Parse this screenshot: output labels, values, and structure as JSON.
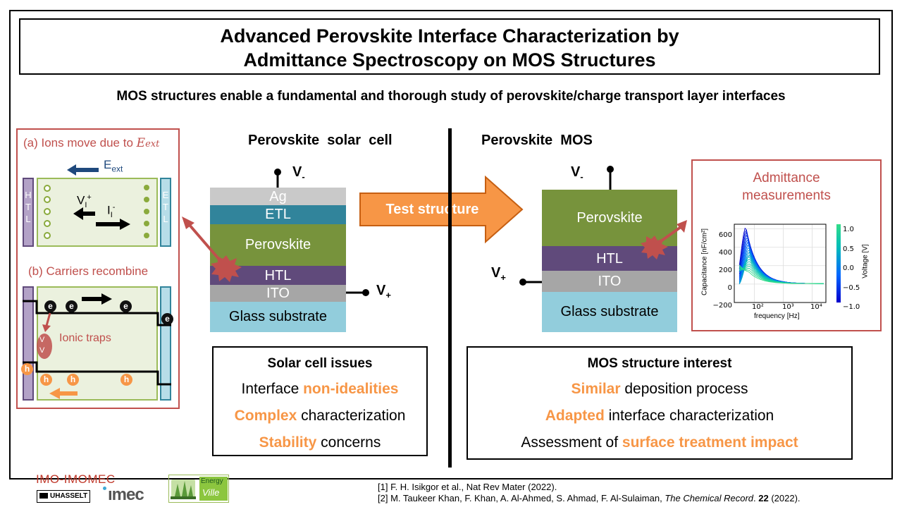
{
  "title": {
    "line1": "Advanced Perovskite Interface Characterization by",
    "line2": "Admittance Spectroscopy on MOS Structures"
  },
  "subtitle": "MOS structures enable a fundamental and thorough study of perovskite/charge transport layer interfaces",
  "left_panel": {
    "part_a": "(a) Ions move due to ",
    "part_a_vec": "E",
    "part_a_sub": "ext",
    "e_field": "E",
    "e_field_sub": "ext",
    "vi": "V",
    "vi_sub": "I",
    "vi_sup": "+",
    "ii": "I",
    "ii_sub": "I",
    "ii_sup": "-",
    "htl_letters": [
      "H",
      "T",
      "L"
    ],
    "etl_letters": [
      "E",
      "T",
      "L"
    ],
    "part_b": "(b) Carriers recombine",
    "ionic_traps": "Ionic traps",
    "trap_v1": "V",
    "trap_v2": "V",
    "electron": "e",
    "hole": "h"
  },
  "solar_cell": {
    "heading": "Perovskite  solar  cell",
    "layers": [
      "Ag",
      "ETL",
      "Perovskite",
      "HTL",
      "ITO",
      "Glass substrate"
    ],
    "v_minus": "V",
    "v_minus_sub": "-",
    "v_plus": "V",
    "v_plus_sub": "+"
  },
  "arrow_label": "Test structure",
  "mos": {
    "heading": "Perovskite  MOS",
    "layers": [
      "Perovskite",
      "HTL",
      "ITO",
      "Glass substrate"
    ],
    "v_minus": "V",
    "v_minus_sub": "-",
    "v_plus": "V",
    "v_plus_sub": "+"
  },
  "admittance": {
    "title_line1": "Admittance",
    "title_line2": "measurements",
    "ylabel": "Capacitance [nF/cm²]",
    "xlabel": "frequency [Hz]",
    "yticks": [
      "600",
      "400",
      "200",
      "0",
      "−200"
    ],
    "xticks": [
      "10²",
      "10³",
      "10⁴"
    ],
    "cbar_label": "Voltage [V]",
    "cbar_ticks": [
      "1.0",
      "0.5",
      "0.0",
      "−0.5",
      "−1.0"
    ]
  },
  "chart_data": {
    "type": "line",
    "title": "",
    "xlabel": "frequency [Hz]",
    "ylabel": "Capacitance [nF/cm²]",
    "xscale": "log",
    "xlim": [
      20,
      30000
    ],
    "ylim": [
      -200,
      650
    ],
    "colorbar": {
      "label": "Voltage [V]",
      "range": [
        -1.0,
        1.0
      ],
      "colors": [
        "#0000cc",
        "#0066ff",
        "#00bbbb",
        "#33dd88"
      ]
    },
    "series_count": 20
  },
  "solar_issues": {
    "heading": "Solar cell issues",
    "rows": [
      {
        "pre": "Interface ",
        "hl": "non-idealities",
        "post": ""
      },
      {
        "pre": "",
        "hl": "Complex",
        "post": " characterization"
      },
      {
        "pre": "",
        "hl": "Stability",
        "post": " concerns"
      }
    ]
  },
  "mos_interest": {
    "heading": "MOS structure interest",
    "rows": [
      {
        "pre": "",
        "hl": "Similar",
        "post": " deposition process"
      },
      {
        "pre": "",
        "hl": "Adapted",
        "post": " interface characterization"
      },
      {
        "pre": "Assessment of ",
        "hl": "surface treatment impact",
        "post": ""
      }
    ]
  },
  "logos": {
    "imo": "IMO-IMOMEC",
    "uhasselt": "UHASSELT",
    "imec": "ımec",
    "energy": "Energy",
    "ville": "Ville"
  },
  "references": {
    "r1": "[1] F. H. Isikgor  et al., Nat Rev Mater (2022).",
    "r2_pre": "[2] M. Taukeer Khan, F. Khan, A. Al-Ahmed, S. Ahmad, F. Al-Sulaiman, ",
    "r2_journal": "The Chemical Record",
    "r2_mid": ". ",
    "r2_vol": "22",
    "r2_post": " (2022)."
  },
  "colors": {
    "ag": "#c9c9c9",
    "etl": "#31849b",
    "perovskite": "#77933c",
    "htl": "#604a7b",
    "ito": "#a6a6a6",
    "glass": "#92cddc",
    "accent_red": "#c0504d",
    "accent_orange": "#f79646"
  }
}
